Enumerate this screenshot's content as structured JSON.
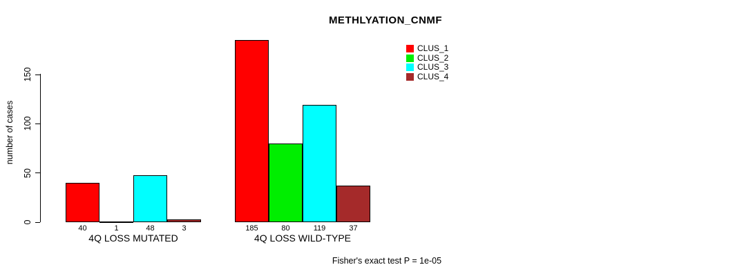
{
  "chart_data": {
    "type": "bar",
    "title": "METHLYATION_CNMF",
    "xlabel": "",
    "ylabel": "number of cases",
    "categories": [
      "4Q LOSS MUTATED",
      "4Q LOSS WILD-TYPE"
    ],
    "series": [
      {
        "name": "CLUS_1",
        "color": "#FF0000",
        "values": [
          40,
          185
        ]
      },
      {
        "name": "CLUS_2",
        "color": "#00EE00",
        "values": [
          1,
          80
        ]
      },
      {
        "name": "CLUS_3",
        "color": "#00FFFF",
        "values": [
          48,
          119
        ]
      },
      {
        "name": "CLUS_4",
        "color": "#A52A2A",
        "values": [
          3,
          37
        ]
      }
    ],
    "ylim": [
      0,
      150
    ],
    "y_ticks": [
      0,
      50,
      100,
      150
    ],
    "grid": false,
    "legend_position": "top-right",
    "bar_border_color": "#000000",
    "bar_value_labels_shown": true,
    "annotation": "Fisher's exact test P = 1e-05"
  }
}
